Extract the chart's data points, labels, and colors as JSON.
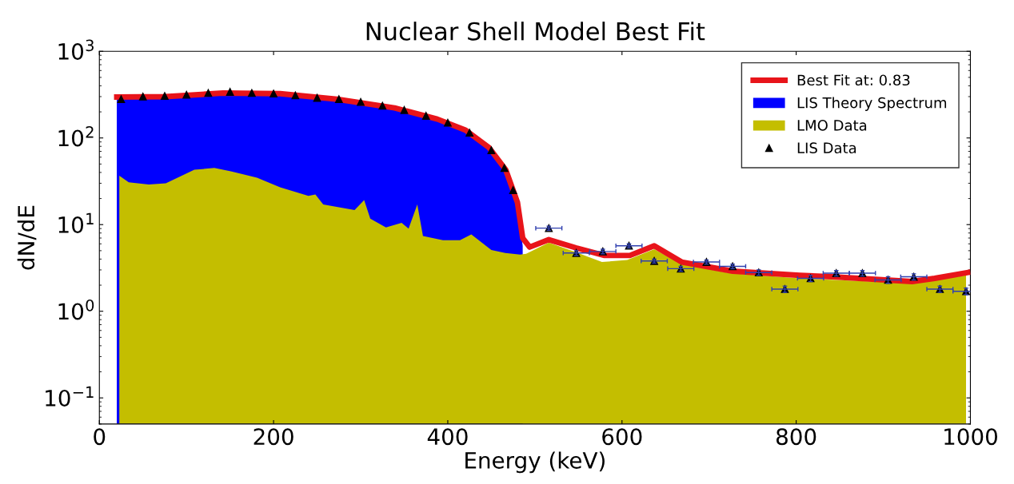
{
  "chart_data": {
    "type": "area",
    "title": "Nuclear Shell Model Best Fit",
    "xlabel": "Energy (keV)",
    "ylabel": "dN/dE",
    "log": "y",
    "grid": false,
    "legend": "top right",
    "xlim": [
      0,
      1000
    ],
    "xticks": [
      0,
      200,
      400,
      600,
      800,
      1000
    ],
    "ylim": [
      0.05,
      1000
    ],
    "yticks": [
      {
        "value": 0.1,
        "label": "10$^{−1}$"
      },
      {
        "value": 1,
        "label": "10$^{0}$"
      },
      {
        "value": 10,
        "label": "10$^{1}$"
      },
      {
        "value": 100,
        "label": "10$^{2}$"
      },
      {
        "value": 1000,
        "label": "10$^{3}$"
      }
    ],
    "series": [
      {
        "name": "Best Fit at: 0.83",
        "type": "line",
        "color": "#e8141a",
        "x": [
          20,
          76,
          142,
          207.5,
          273,
          339,
          388,
          420.5,
          447,
          466.5,
          480,
          486,
          494,
          516,
          547,
          580,
          609,
          637,
          668.5,
          727,
          804,
          841,
          933,
          959,
          997
        ],
        "values": [
          297,
          300,
          330,
          325,
          280,
          222,
          165,
          123,
          78,
          43,
          18,
          7,
          5.5,
          6.7,
          5.4,
          4.4,
          4.4,
          5.7,
          3.7,
          2.9,
          2.6,
          2.5,
          2.2,
          2.4,
          2.8
        ]
      },
      {
        "name": "LIS Theory Spectrum",
        "color": "#0000ff",
        "x": [
          20,
          40,
          76,
          110,
          142,
          175,
          207.5,
          240,
          273,
          305,
          339,
          365,
          388,
          405,
          420.5,
          435,
          447,
          458,
          466.5,
          474,
          480,
          486
        ],
        "values": [
          287,
          290,
          297,
          312,
          326,
          325,
          321,
          300,
          275,
          250,
          219,
          190,
          161,
          140,
          120,
          97,
          75,
          57,
          41,
          27,
          16.5,
          5.7
        ]
      },
      {
        "name": "LMO Data",
        "color": "#c4be00",
        "x": [
          22.9,
          33.7,
          56.7,
          76.3,
          109,
          132,
          152,
          181,
          207.5,
          240,
          248,
          257,
          293,
          304,
          311,
          329,
          347,
          355,
          365,
          371.5,
          394.5,
          414,
          427,
          450,
          466,
          483,
          490,
          516,
          547,
          577,
          606,
          637,
          668.5,
          723.6,
          804,
          933,
          995
        ],
        "values": [
          36.6,
          30.8,
          29,
          30,
          43,
          45,
          41,
          34.7,
          27,
          21.5,
          22.3,
          17.1,
          14.7,
          19.2,
          11.7,
          9.3,
          10.5,
          9,
          17.1,
          7.4,
          6.6,
          6.6,
          7.7,
          5.1,
          4.7,
          4.5,
          4.6,
          6.2,
          4.8,
          3.7,
          3.9,
          5.2,
          3.5,
          2.75,
          2.4,
          2.1,
          2.6
        ]
      },
      {
        "name": "LIS Data",
        "type": "scatter",
        "marker": "triangle",
        "color": "#000000",
        "x": [
          25,
          50,
          75,
          100,
          125,
          150,
          175,
          200,
          225,
          250,
          275,
          300,
          325,
          350,
          375,
          400,
          425,
          450,
          465,
          475,
          516,
          547.5,
          578,
          608,
          637,
          667.5,
          697,
          727,
          757,
          787,
          816.5,
          846,
          876,
          905.5,
          935,
          965,
          995
        ],
        "values": [
          280,
          300,
          305,
          315,
          330,
          340,
          330,
          325,
          310,
          290,
          280,
          260,
          235,
          210,
          180,
          150,
          115,
          72,
          45,
          25,
          9.1,
          4.7,
          4.9,
          5.7,
          3.8,
          3.1,
          3.7,
          3.3,
          2.8,
          1.8,
          2.4,
          2.75,
          2.75,
          2.3,
          2.5,
          1.8,
          1.7
        ],
        "errors": [
          null,
          null,
          null,
          null,
          null,
          null,
          null,
          null,
          null,
          null,
          null,
          null,
          null,
          null,
          null,
          null,
          null,
          null,
          null,
          null,
          0.5,
          0.3,
          0.3,
          0.3,
          0.2,
          0.2,
          0.2,
          0.2,
          0.2,
          0.15,
          0.2,
          0.2,
          0.2,
          0.2,
          0.2,
          0.15,
          0.15
        ],
        "xerrors": [
          null,
          null,
          null,
          null,
          null,
          null,
          null,
          null,
          null,
          null,
          null,
          null,
          null,
          null,
          null,
          null,
          null,
          null,
          null,
          null,
          15,
          15,
          15,
          15,
          15,
          15,
          15,
          15,
          15,
          15,
          15,
          15,
          15,
          15,
          15,
          15,
          15
        ]
      }
    ]
  }
}
